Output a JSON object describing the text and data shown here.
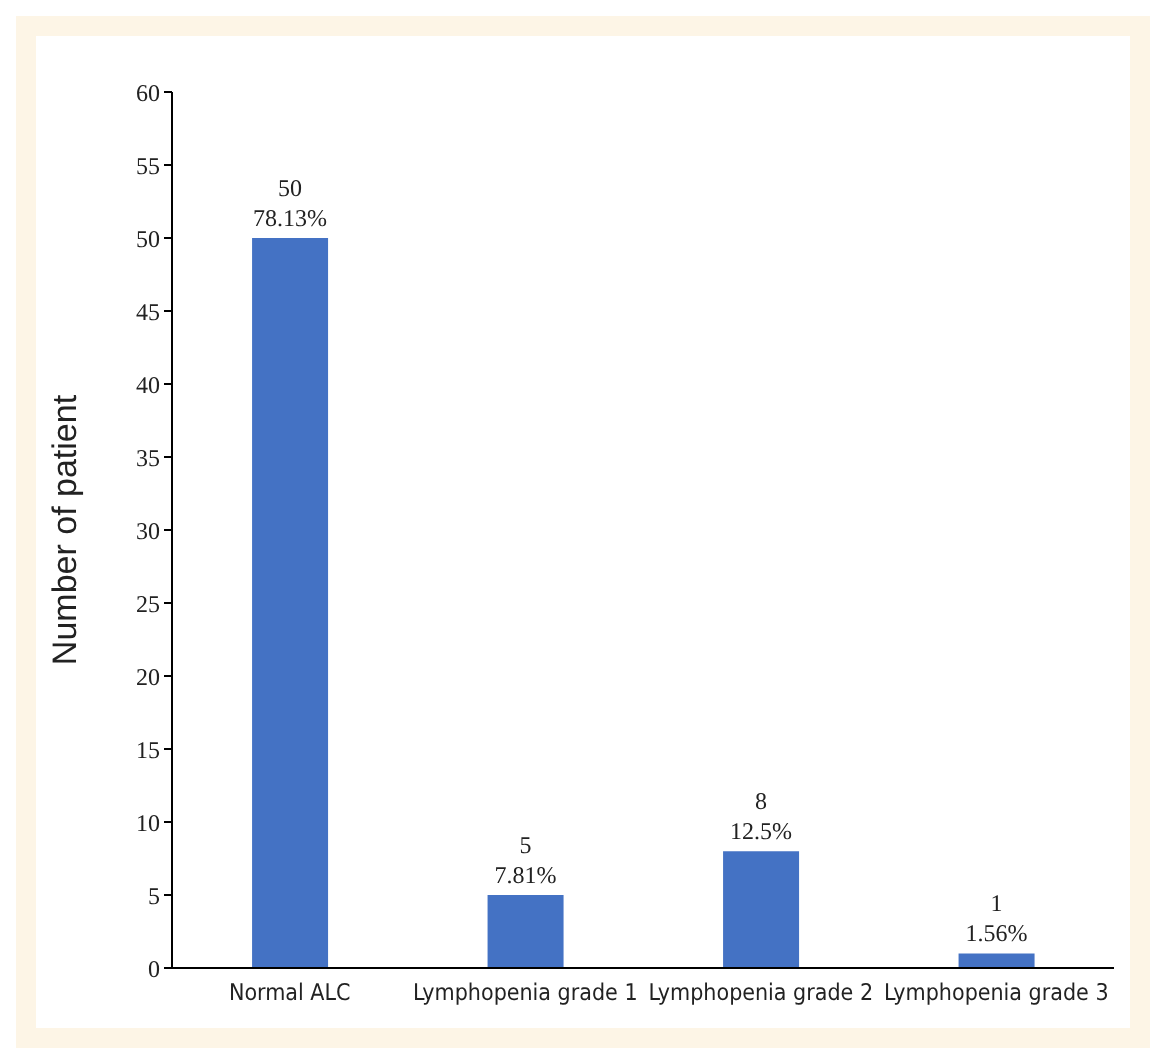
{
  "chart_data": {
    "type": "bar",
    "ylabel": "Number of patient",
    "categories": [
      "Normal ALC",
      "Lymphopenia grade 1",
      "Lymphopenia grade 2",
      "Lymphopenia grade 3"
    ],
    "values": [
      50,
      5,
      8,
      1
    ],
    "value_labels": [
      "50\n78.13%",
      "5\n7.81%",
      "8\n12.5%",
      "1\n1.56%"
    ],
    "color": "#4472c4",
    "ylim": [
      0,
      60
    ],
    "yticks": [
      0,
      5,
      10,
      15,
      20,
      25,
      30,
      35,
      40,
      45,
      50,
      55,
      60
    ],
    "grid": false,
    "legend": false
  }
}
